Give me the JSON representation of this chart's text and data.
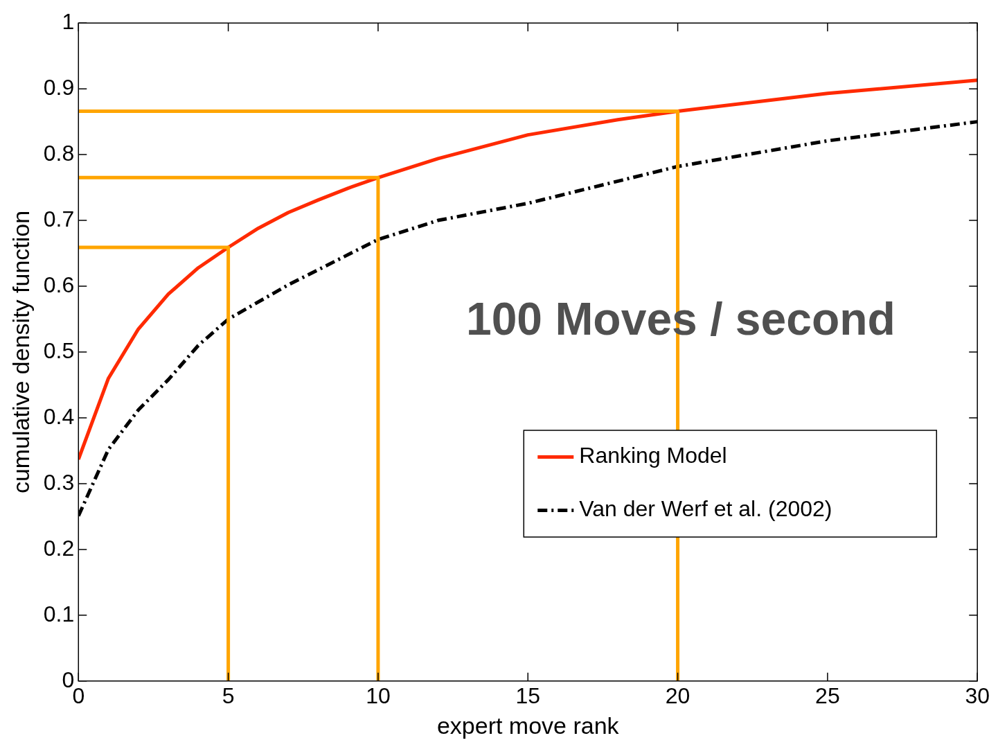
{
  "chart_data": {
    "type": "line",
    "xlabel": "expert move rank",
    "ylabel": "cumulative density function",
    "xlim": [
      0,
      30
    ],
    "ylim": [
      0,
      1
    ],
    "xticks": [
      0,
      5,
      10,
      15,
      20,
      25,
      30
    ],
    "yticks": [
      0,
      0.1,
      0.2,
      0.3,
      0.4,
      0.5,
      0.6,
      0.7,
      0.8,
      0.9,
      1
    ],
    "grid": false,
    "legend": "right",
    "marker": "none",
    "annotations": [
      "100 Moves / second"
    ],
    "series": [
      {
        "x": [
          0,
          5,
          5
        ],
        "values": [
          0.659,
          0.659,
          0
        ],
        "color": "#ffa500",
        "line_style": "solid"
      },
      {
        "x": [
          0,
          10,
          10
        ],
        "values": [
          0.765,
          0.765,
          0
        ],
        "color": "#ffa500",
        "line_style": "solid"
      },
      {
        "x": [
          0,
          20,
          20
        ],
        "values": [
          0.866,
          0.866,
          0
        ],
        "color": "#ffa500",
        "line_style": "solid"
      },
      {
        "name": "Ranking Model",
        "x": [
          0,
          1,
          2,
          3,
          4,
          5,
          6,
          7,
          8,
          9,
          10,
          12,
          15,
          18,
          20,
          25,
          30
        ],
        "values": [
          0.337,
          0.46,
          0.535,
          0.588,
          0.628,
          0.659,
          0.688,
          0.712,
          0.731,
          0.749,
          0.765,
          0.794,
          0.83,
          0.853,
          0.866,
          0.893,
          0.913
        ],
        "color": "#ff2a00",
        "line_style": "solid"
      },
      {
        "name": "Van der Werf et al. (2002)",
        "x": [
          0,
          1,
          2,
          3,
          4,
          5,
          7,
          10,
          12,
          15,
          20,
          25,
          30
        ],
        "values": [
          0.251,
          0.352,
          0.412,
          0.458,
          0.51,
          0.55,
          0.602,
          0.671,
          0.7,
          0.726,
          0.782,
          0.821,
          0.85
        ],
        "color": "#000000",
        "line_style": "dashed"
      }
    ]
  }
}
